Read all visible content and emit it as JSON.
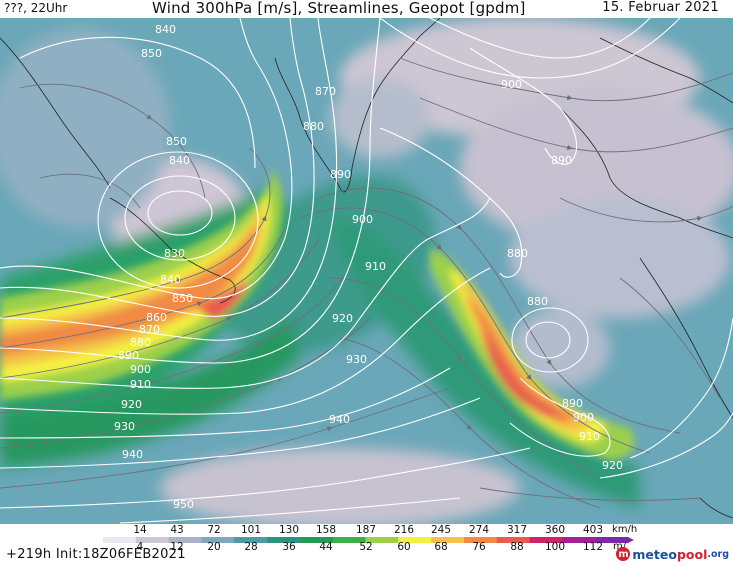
{
  "header": {
    "valid_time": "???, 22Uhr",
    "title": "Wind 300hPa [m/s], Streamlines, Geopot [gpdm]",
    "date": "15. Februar 2021"
  },
  "contour_labels": [
    "840",
    "850",
    "870",
    "880",
    "900",
    "890",
    "850",
    "840",
    "830",
    "840",
    "850",
    "860",
    "870",
    "880",
    "890",
    "900",
    "910",
    "920",
    "930",
    "940",
    "880",
    "890",
    "900",
    "910",
    "920",
    "930",
    "940",
    "950",
    "880",
    "890",
    "900",
    "910",
    "920"
  ],
  "legend": {
    "kmh_values": [
      "14",
      "43",
      "72",
      "101",
      "130",
      "158",
      "187",
      "216",
      "245",
      "274",
      "317",
      "360",
      "403"
    ],
    "kmh_unit": "km/h",
    "ms_values": [
      "4",
      "12",
      "20",
      "28",
      "36",
      "44",
      "52",
      "60",
      "68",
      "76",
      "88",
      "100",
      "112"
    ],
    "ms_unit": "m/",
    "colors": [
      "#ece6ef",
      "#cdc6d3",
      "#a9b4c6",
      "#7ea9bc",
      "#4f9aa6",
      "#2f9180",
      "#239a55",
      "#3cb04a",
      "#9cd04c",
      "#f4f240",
      "#f4c24a",
      "#f08a44",
      "#e95a50",
      "#d5206e",
      "#a51f98",
      "#7a2aa8"
    ]
  },
  "footer": {
    "run_info": "+219h  Init:18Z06FEB2021",
    "logo_badge": "m",
    "logo_text_a": "meteo",
    "logo_text_b": "pool",
    "logo_text_c": ".org"
  }
}
